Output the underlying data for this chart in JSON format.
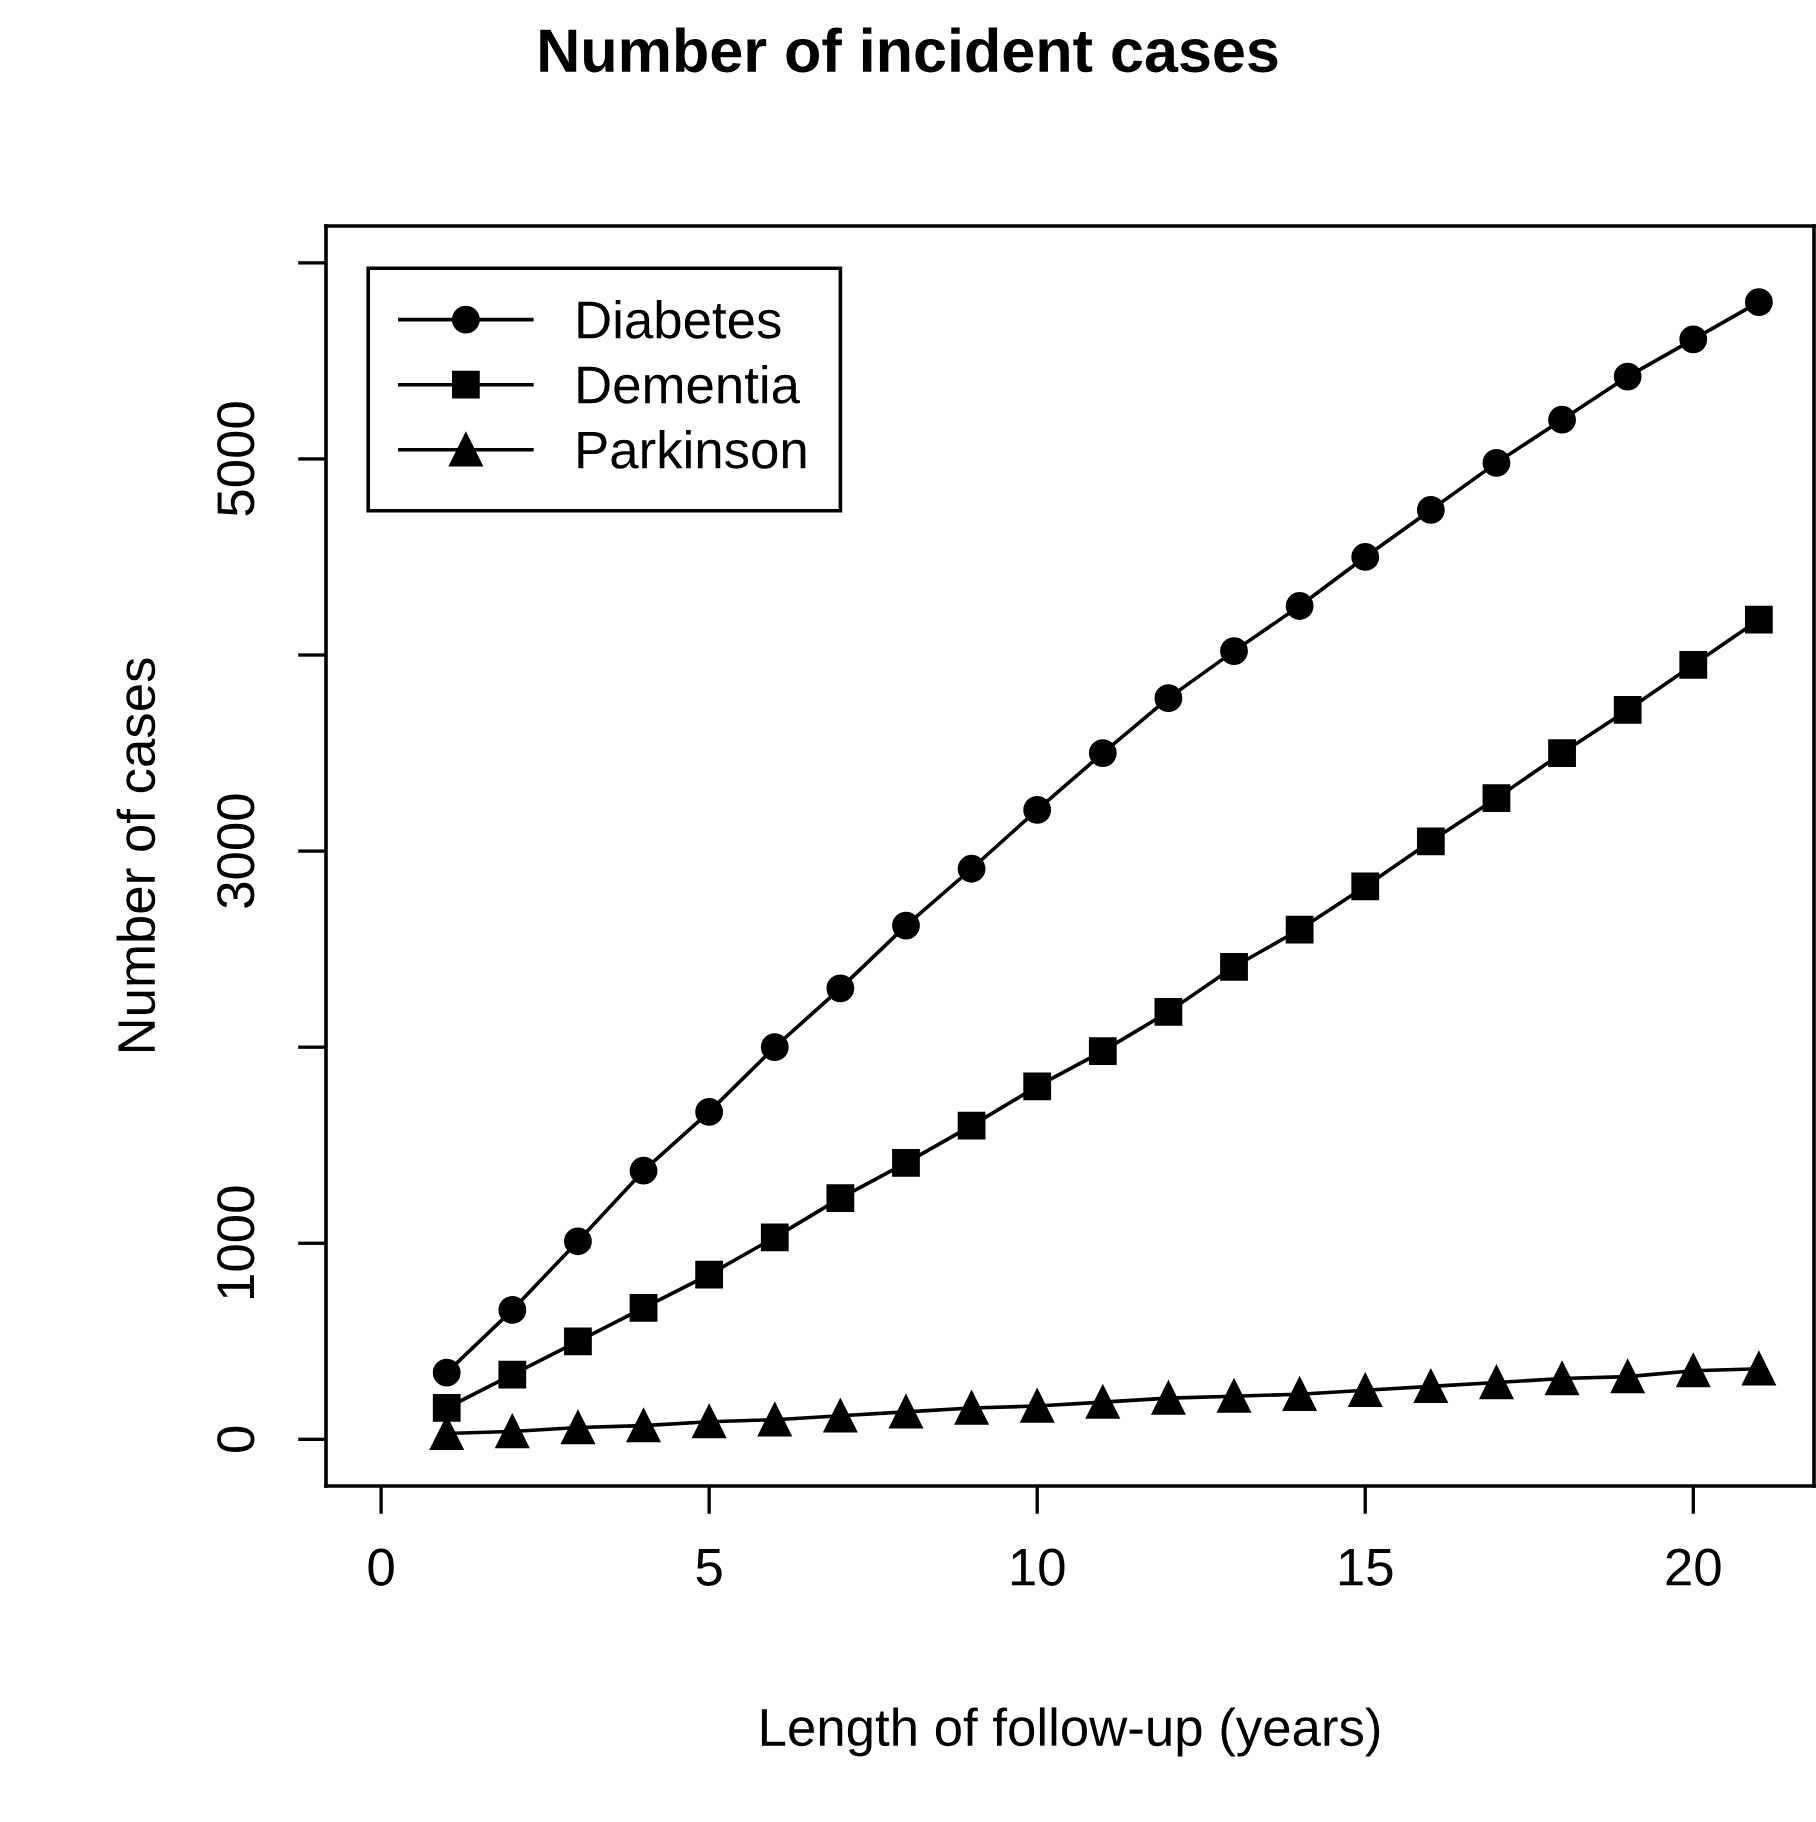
{
  "chart_data": {
    "type": "line",
    "title": "Number of incident cases",
    "xlabel": "Length of follow-up (years)",
    "ylabel": "Number of cases",
    "x": [
      1,
      2,
      3,
      4,
      5,
      6,
      7,
      8,
      9,
      10,
      11,
      12,
      13,
      14,
      15,
      16,
      17,
      18,
      19,
      20,
      21
    ],
    "series": [
      {
        "name": "Diabetes",
        "color": "#000000",
        "marker": "circle",
        "values": [
          340,
          660,
          1010,
          1370,
          1670,
          2000,
          2300,
          2620,
          2910,
          3210,
          3500,
          3780,
          4020,
          4250,
          4500,
          4740,
          4980,
          5200,
          5420,
          5610,
          5800
        ]
      },
      {
        "name": "Dementia",
        "color": "#000000",
        "marker": "square",
        "values": [
          160,
          330,
          500,
          670,
          840,
          1030,
          1230,
          1410,
          1600,
          1800,
          1980,
          2180,
          2410,
          2600,
          2820,
          3050,
          3270,
          3500,
          3720,
          3950,
          4180
        ]
      },
      {
        "name": "Parkinson",
        "color": "#000000",
        "marker": "triangle",
        "values": [
          30,
          40,
          60,
          70,
          90,
          100,
          120,
          140,
          160,
          170,
          190,
          210,
          220,
          230,
          250,
          270,
          290,
          310,
          320,
          350,
          360
        ]
      }
    ],
    "xlim": [
      -0.84,
      21.84
    ],
    "xticks": [
      0,
      5,
      10,
      15,
      20
    ],
    "ylim": [
      -238,
      6188
    ],
    "yticks": [
      0,
      1000,
      {
        "value": 2000,
        "label": null
      },
      3000,
      {
        "value": 4000,
        "label": null
      },
      5000,
      {
        "value": 6000,
        "label": null
      }
    ],
    "grid": false,
    "legend": "top left",
    "line_style": "solid"
  }
}
